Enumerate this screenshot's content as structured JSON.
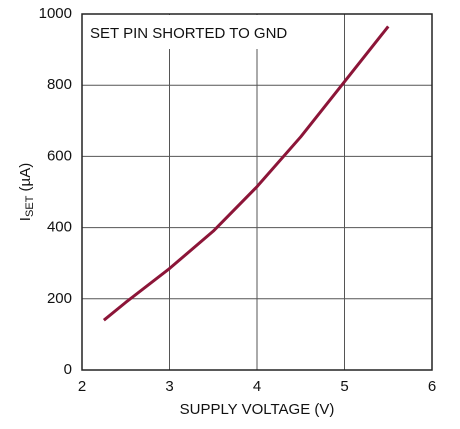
{
  "chart_data": {
    "type": "line",
    "annotation": "SET PIN SHORTED TO GND",
    "xlabel": "SUPPLY VOLTAGE (V)",
    "ylabel": [
      "I",
      "SET",
      " (µA)"
    ],
    "xlim": [
      2,
      6
    ],
    "xticks": [
      2,
      3,
      4,
      5,
      6
    ],
    "ylim": [
      0,
      1000
    ],
    "yticks": [
      0,
      200,
      400,
      600,
      800,
      1000
    ],
    "grid": true,
    "x": [
      2.25,
      2.5,
      3,
      3.5,
      4,
      4.5,
      5,
      5.5
    ],
    "series": [
      {
        "color": "#8c1538",
        "values": [
          140,
          190,
          285,
          390,
          515,
          655,
          810,
          965
        ]
      }
    ]
  }
}
